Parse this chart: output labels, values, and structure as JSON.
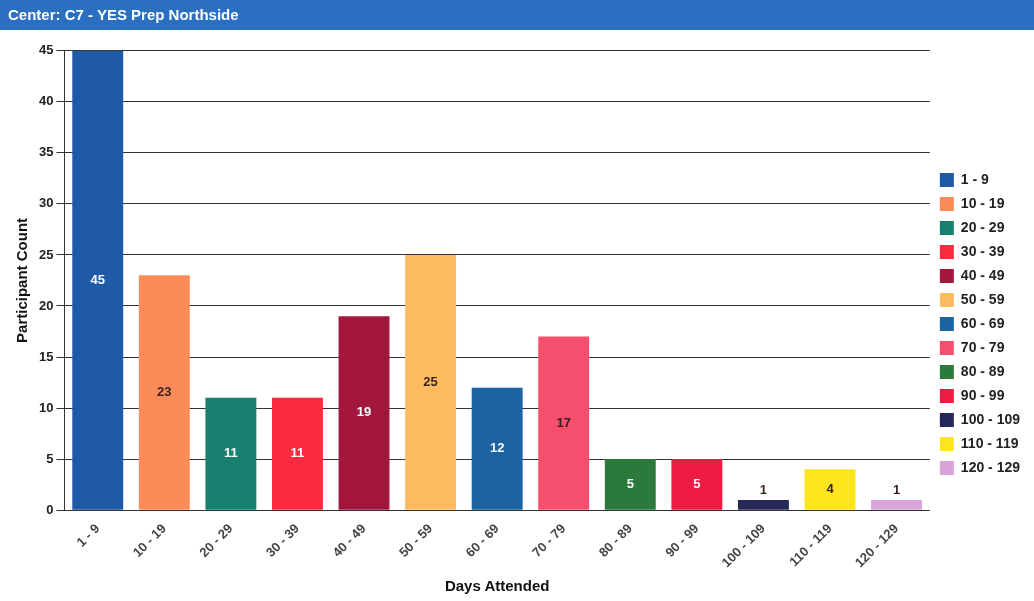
{
  "chart_data": {
    "type": "bar",
    "title": "Center: C7 - YES Prep Northside",
    "xlabel": "Days Attended",
    "ylabel": "Participant Count",
    "categories": [
      "1 - 9",
      "10 - 19",
      "20 - 29",
      "30 - 39",
      "40 - 49",
      "50 - 59",
      "60 - 69",
      "70 - 79",
      "80 - 89",
      "90 - 99",
      "100 - 109",
      "110 - 119",
      "120 - 129"
    ],
    "series": [
      {
        "name": "1 - 9",
        "color": "#1f5aa6",
        "values": [
          45,
          null,
          null,
          null,
          null,
          null,
          null,
          null,
          null,
          null,
          null,
          null,
          null
        ]
      },
      {
        "name": "10 - 19",
        "color": "#fb8c5a",
        "values": [
          null,
          23,
          null,
          null,
          null,
          null,
          null,
          null,
          null,
          null,
          null,
          null,
          null
        ]
      },
      {
        "name": "20 - 29",
        "color": "#17806f",
        "values": [
          null,
          null,
          11,
          null,
          null,
          null,
          null,
          null,
          null,
          null,
          null,
          null,
          null
        ]
      },
      {
        "name": "30 - 39",
        "color": "#fb2a40",
        "values": [
          null,
          null,
          null,
          11,
          null,
          null,
          null,
          null,
          null,
          null,
          null,
          null,
          null
        ]
      },
      {
        "name": "40 - 49",
        "color": "#a3173f",
        "values": [
          null,
          null,
          null,
          null,
          19,
          null,
          null,
          null,
          null,
          null,
          null,
          null,
          null
        ]
      },
      {
        "name": "50 - 59",
        "color": "#fdbb5f",
        "values": [
          null,
          null,
          null,
          null,
          null,
          25,
          null,
          null,
          null,
          null,
          null,
          null,
          null
        ]
      },
      {
        "name": "60 - 69",
        "color": "#1c64a0",
        "values": [
          null,
          null,
          null,
          null,
          null,
          null,
          12,
          null,
          null,
          null,
          null,
          null,
          null
        ]
      },
      {
        "name": "70 - 79",
        "color": "#f64f6e",
        "values": [
          null,
          null,
          null,
          null,
          null,
          null,
          null,
          17,
          null,
          null,
          null,
          null,
          null
        ]
      },
      {
        "name": "80 - 89",
        "color": "#2b7a3b",
        "values": [
          null,
          null,
          null,
          null,
          null,
          null,
          null,
          null,
          5,
          null,
          null,
          null,
          null
        ]
      },
      {
        "name": "90 - 99",
        "color": "#ee1c43",
        "values": [
          null,
          null,
          null,
          null,
          null,
          null,
          null,
          null,
          null,
          5,
          null,
          null,
          null
        ]
      },
      {
        "name": "100 - 109",
        "color": "#26285a",
        "values": [
          null,
          null,
          null,
          null,
          null,
          null,
          null,
          null,
          null,
          null,
          1,
          null,
          null
        ]
      },
      {
        "name": "110 - 119",
        "color": "#fde51d",
        "values": [
          null,
          null,
          null,
          null,
          null,
          null,
          null,
          null,
          null,
          null,
          null,
          4,
          null
        ]
      },
      {
        "name": "120 - 129",
        "color": "#d9a4d9",
        "values": [
          null,
          null,
          null,
          null,
          null,
          null,
          null,
          null,
          null,
          null,
          null,
          null,
          1
        ]
      }
    ],
    "ylim": [
      0,
      45
    ],
    "yticks": [
      0,
      5,
      10,
      15,
      20,
      25,
      30,
      35,
      40,
      45
    ],
    "grid": "y",
    "legend": "right",
    "data_labels": true
  }
}
